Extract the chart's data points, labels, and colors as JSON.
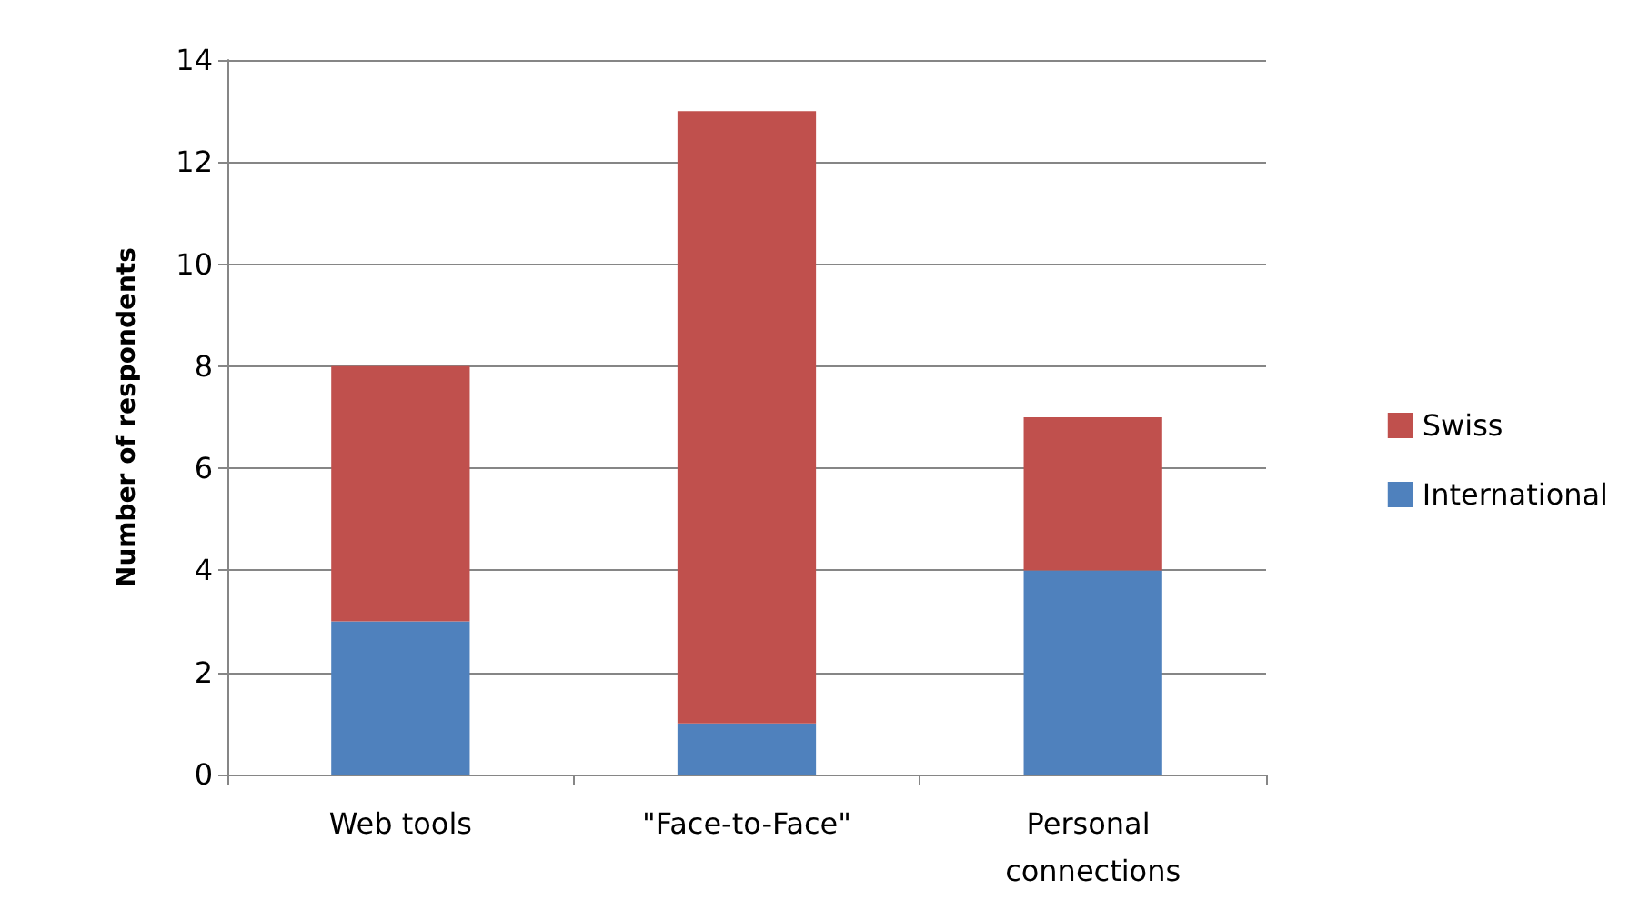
{
  "chart_data": {
    "type": "bar",
    "stacked": true,
    "ylabel": "Number of respondents",
    "categories": [
      "Web tools",
      "\"Face-to-Face\"",
      "Personal connections"
    ],
    "series": [
      {
        "name": "International",
        "color": "#4f81bd",
        "values": [
          3,
          1,
          4
        ]
      },
      {
        "name": "Swiss",
        "color": "#c0504d",
        "values": [
          5,
          12,
          3
        ]
      }
    ],
    "ylim": [
      0,
      14
    ],
    "yticks": [
      0,
      2,
      4,
      6,
      8,
      10,
      12,
      14
    ],
    "grid": "y",
    "legend": "right"
  }
}
